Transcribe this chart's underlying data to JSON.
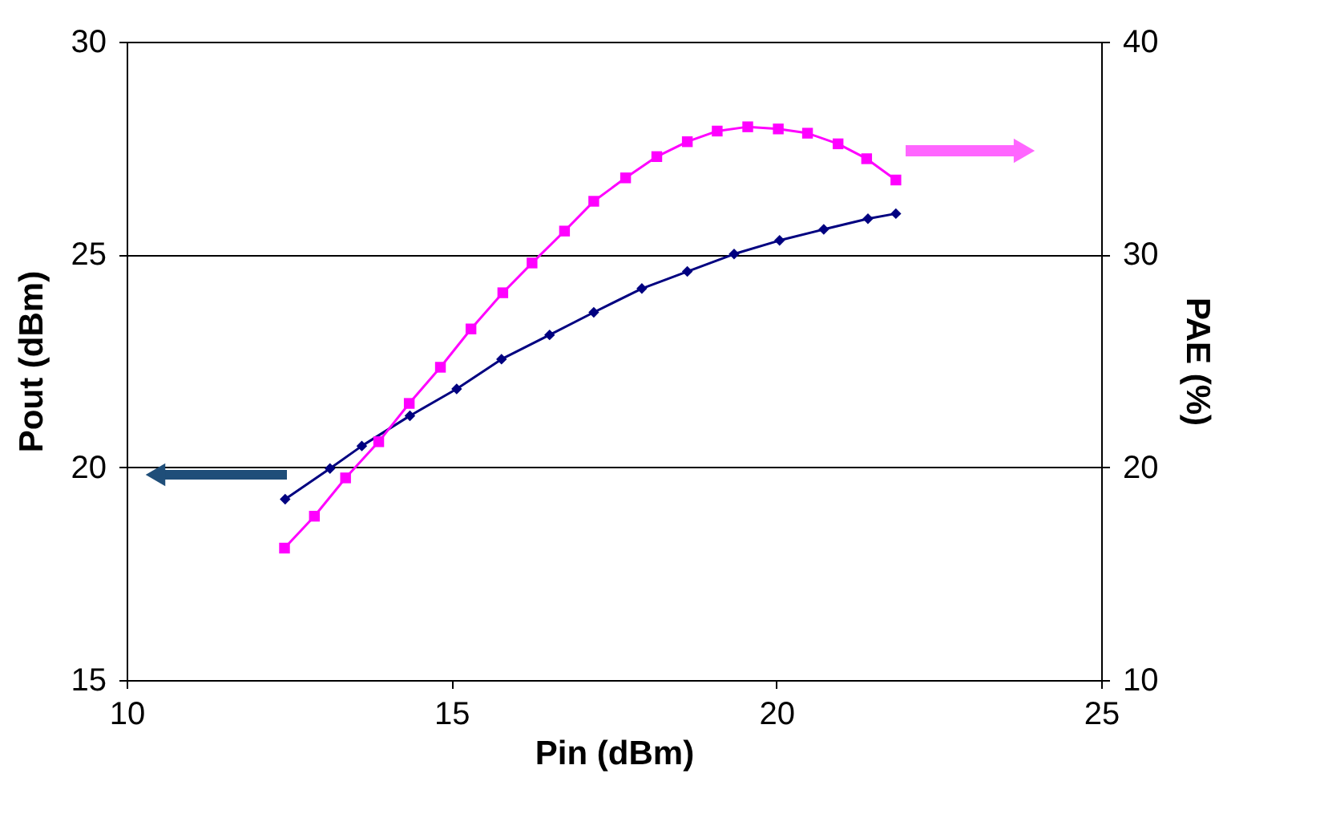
{
  "chart_data": {
    "type": "line",
    "xlabel": "Pin (dBm)",
    "ylabel": "Pout (dBm)",
    "y2label": "PAE (%)",
    "xlim": [
      10,
      25
    ],
    "xticks": [
      10,
      15,
      20,
      25
    ],
    "ylim": [
      15,
      30
    ],
    "yticks": [
      15,
      20,
      25,
      30
    ],
    "y2lim": [
      10,
      40
    ],
    "y2ticks": [
      10,
      20,
      30,
      40
    ],
    "grid": "y",
    "series": [
      {
        "color": "#000080",
        "marker": "diamond",
        "x": [
          12.44,
          13.13,
          13.62,
          14.36,
          15.08,
          15.77,
          16.51,
          17.19,
          17.93,
          18.63,
          19.35,
          20.05,
          20.73,
          21.41,
          21.84
        ],
        "values": [
          19.25,
          19.97,
          20.5,
          21.21,
          21.84,
          22.54,
          23.11,
          23.64,
          24.2,
          24.6,
          25.01,
          25.33,
          25.59,
          25.84,
          25.96
        ]
      },
      {
        "color": "#ff00ff",
        "marker": "square",
        "axis": "y2",
        "x": [
          12.43,
          12.89,
          13.37,
          13.88,
          14.35,
          14.83,
          15.3,
          15.79,
          16.24,
          16.74,
          17.19,
          17.68,
          18.16,
          18.63,
          19.09,
          19.56,
          20.03,
          20.48,
          20.95,
          21.39,
          21.84
        ],
        "values": [
          16.2,
          17.7,
          19.5,
          21.2,
          23.0,
          24.7,
          26.5,
          28.2,
          29.6,
          31.1,
          32.5,
          33.6,
          34.6,
          35.3,
          35.8,
          36.0,
          35.9,
          35.7,
          35.2,
          34.5,
          33.5
        ]
      }
    ]
  }
}
